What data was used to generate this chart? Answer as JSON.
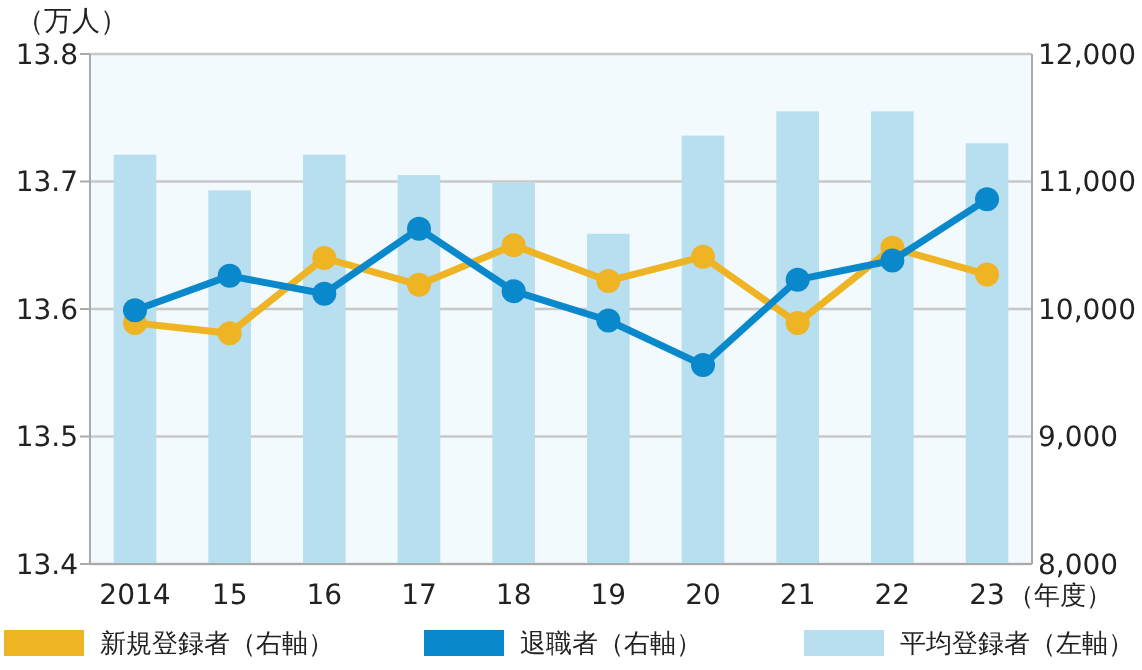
{
  "chart_data": {
    "type": "bar",
    "ylabel": "（万人）",
    "xlabel": "（年度）",
    "categories": [
      "2014",
      "15",
      "16",
      "17",
      "18",
      "19",
      "20",
      "21",
      "22",
      "23"
    ],
    "series": [
      {
        "name": "平均登録者（左軸）",
        "color": "#b8dff0",
        "values": [
          13.721,
          13.693,
          13.721,
          13.705,
          13.699,
          13.659,
          13.736,
          13.755,
          13.755,
          13.73
        ]
      },
      {
        "name": "新規登録者（右軸）",
        "type": "line",
        "axis": "y2",
        "color": "#eeb424",
        "values": [
          9890,
          9810,
          10400,
          10190,
          10500,
          10220,
          10410,
          9890,
          10480,
          10270
        ]
      },
      {
        "name": "退職者（右軸）",
        "type": "line",
        "axis": "y2",
        "color": "#0a88cc",
        "values": [
          9990,
          10260,
          10120,
          10630,
          10140,
          9910,
          9560,
          10230,
          10380,
          10860
        ]
      }
    ],
    "ylim": [
      13.4,
      13.8
    ],
    "yticks": [
      13.4,
      13.5,
      13.6,
      13.7,
      13.8
    ],
    "y2lim": [
      8000,
      12000
    ],
    "y2ticks": [
      {
        "value": 8000,
        "label": "8,000"
      },
      {
        "value": 9000,
        "label": "9,000"
      },
      {
        "value": 10000,
        "label": "10,000"
      },
      {
        "value": 11000,
        "label": "11,000"
      },
      {
        "value": 12000,
        "label": "12,000"
      }
    ],
    "grid": "y",
    "legend": "bottom",
    "marker": "circle"
  }
}
